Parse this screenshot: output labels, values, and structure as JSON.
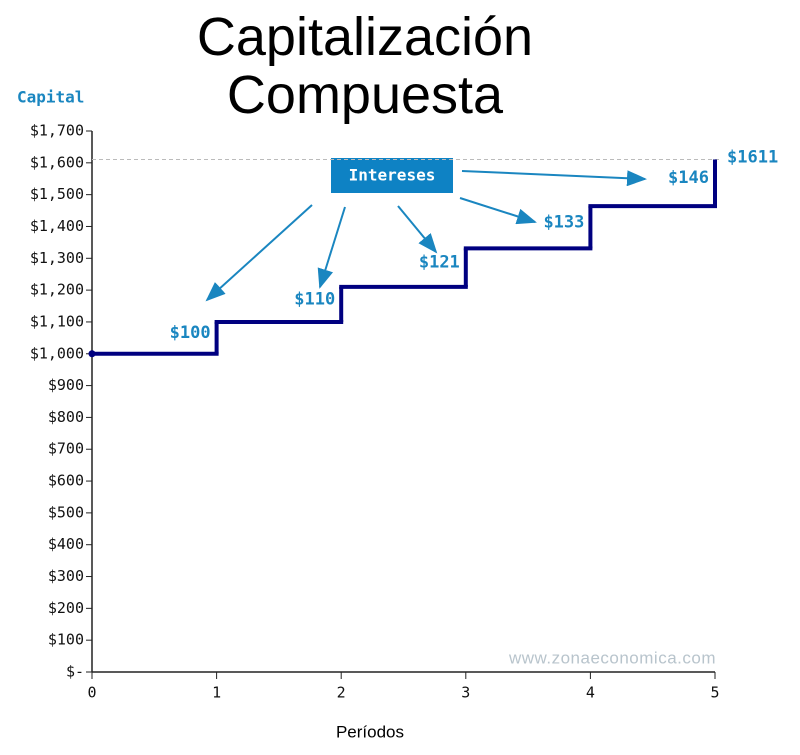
{
  "chart_data": {
    "type": "step",
    "title": "Capitalización Compuesta",
    "y_label": "Capital",
    "x_label": "Períodos",
    "watermark": "www.zonaeconomica.com",
    "x": [
      0,
      1,
      2,
      3,
      4,
      5
    ],
    "series": [
      {
        "name": "Capital",
        "color": "#000080",
        "values": [
          1000,
          1100,
          1210,
          1331,
          1464.1,
          1610.51
        ],
        "value_labels": [
          null,
          null,
          null,
          null,
          null,
          "$1611"
        ]
      }
    ],
    "interest": {
      "name": "Intereses",
      "color": "#1a86c0",
      "values": [
        100,
        110,
        121,
        133.1,
        146.41
      ],
      "value_labels": [
        "$100",
        "$110",
        "$121",
        "$133",
        "$146"
      ]
    },
    "xlim": [
      0,
      5
    ],
    "xticks": [
      0,
      1,
      2,
      3,
      4,
      5
    ],
    "ylim": [
      0,
      1700
    ],
    "yticks": [
      {
        "value": 0,
        "label": "$-"
      },
      {
        "value": 100,
        "label": "$100"
      },
      {
        "value": 200,
        "label": "$200"
      },
      {
        "value": 300,
        "label": "$300"
      },
      {
        "value": 400,
        "label": "$400"
      },
      {
        "value": 500,
        "label": "$500"
      },
      {
        "value": 600,
        "label": "$600"
      },
      {
        "value": 700,
        "label": "$700"
      },
      {
        "value": 800,
        "label": "$800"
      },
      {
        "value": 900,
        "label": "$900"
      },
      {
        "value": 1000,
        "label": "$1,000"
      },
      {
        "value": 1100,
        "label": "$1,100"
      },
      {
        "value": 1200,
        "label": "$1,200"
      },
      {
        "value": 1300,
        "label": "$1,300"
      },
      {
        "value": 1400,
        "label": "$1,400"
      },
      {
        "value": 1500,
        "label": "$1,500"
      },
      {
        "value": 1600,
        "label": "$1,600"
      },
      {
        "value": 1700,
        "label": "$1,700"
      }
    ]
  }
}
